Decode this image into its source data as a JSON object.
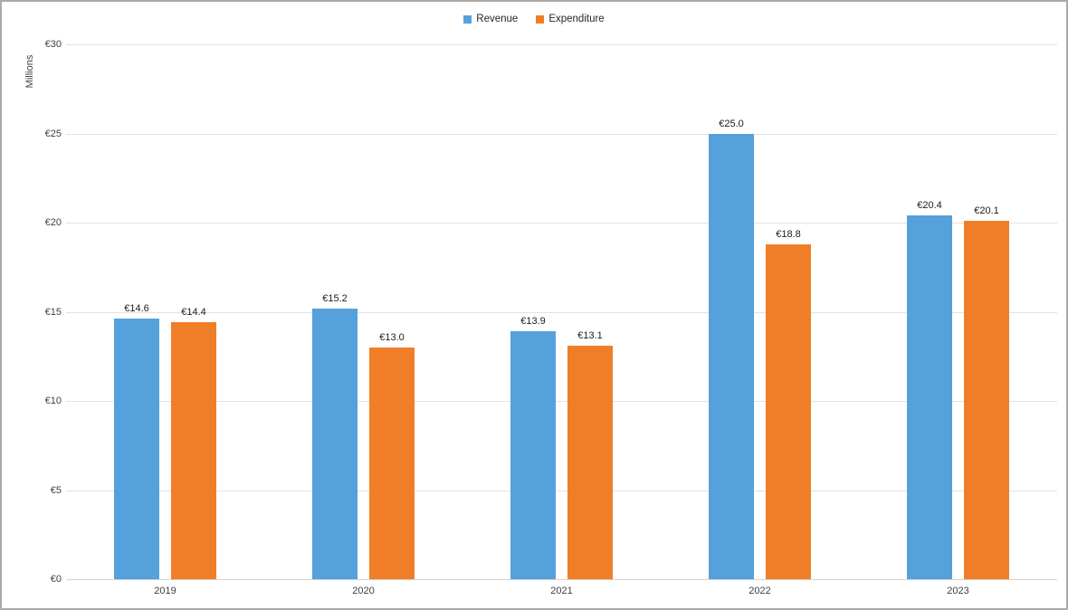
{
  "chart_data": {
    "type": "bar",
    "title": "",
    "ylabel": "Millions",
    "xlabel": "",
    "categories": [
      "2019",
      "2020",
      "2021",
      "2022",
      "2023"
    ],
    "series": [
      {
        "name": "Revenue",
        "color": "#55a1dc",
        "values": [
          14.6,
          15.2,
          13.9,
          25.0,
          20.4
        ],
        "labels": [
          "€14.6",
          "€15.2",
          "€13.9",
          "€25.0",
          "€20.4"
        ]
      },
      {
        "name": "Expenditure",
        "color": "#f07e28",
        "values": [
          14.4,
          13.0,
          13.1,
          18.8,
          20.1
        ],
        "labels": [
          "€14.4",
          "€13.0",
          "€13.1",
          "€18.8",
          "€20.1"
        ]
      }
    ],
    "ylim": [
      0,
      30
    ],
    "ytick_step": 5,
    "ytick_labels": [
      "€0",
      "€5",
      "€10",
      "€15",
      "€20",
      "€25",
      "€30"
    ],
    "grid": true,
    "legend_position": "top",
    "colors": {
      "frame_border": "#ababab",
      "gridline": "#e2e2e2",
      "axis_line": "#d4d4d4",
      "tick_text": "#404040",
      "data_label_text": "#1a1a1a"
    }
  }
}
